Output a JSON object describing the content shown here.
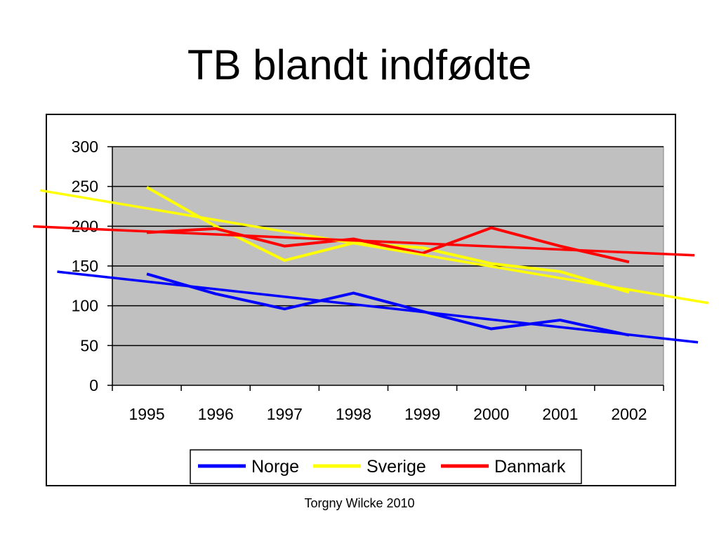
{
  "slide": {
    "title": "TB blandt indfødte",
    "footer": "Torgny Wilcke 2010"
  },
  "chart_data": {
    "type": "line",
    "title": "",
    "xlabel": "",
    "ylabel": "",
    "categories": [
      "1995",
      "1996",
      "1997",
      "1998",
      "1999",
      "2000",
      "2001",
      "2002"
    ],
    "ylim": [
      0,
      300
    ],
    "yticks": [
      0,
      50,
      100,
      150,
      200,
      250,
      300
    ],
    "grid": true,
    "plot_background": "#c0c0c0",
    "legend_position": "bottom",
    "series": [
      {
        "name": "Norge",
        "color": "#0000ff",
        "values": [
          140,
          115,
          96,
          116,
          93,
          71,
          82,
          63
        ]
      },
      {
        "name": "Sverige",
        "color": "#ffff00",
        "values": [
          249,
          200,
          157,
          179,
          173,
          153,
          143,
          117
        ]
      },
      {
        "name": "Danmark",
        "color": "#ff0000",
        "values": [
          192,
          197,
          175,
          184,
          166,
          198,
          175,
          155
        ]
      }
    ],
    "trendlines": [
      {
        "series": "Norge",
        "color": "#0000ff",
        "type": "linear"
      },
      {
        "series": "Sverige",
        "color": "#ffff00",
        "type": "linear"
      },
      {
        "series": "Danmark",
        "color": "#ff0000",
        "type": "linear"
      }
    ]
  }
}
